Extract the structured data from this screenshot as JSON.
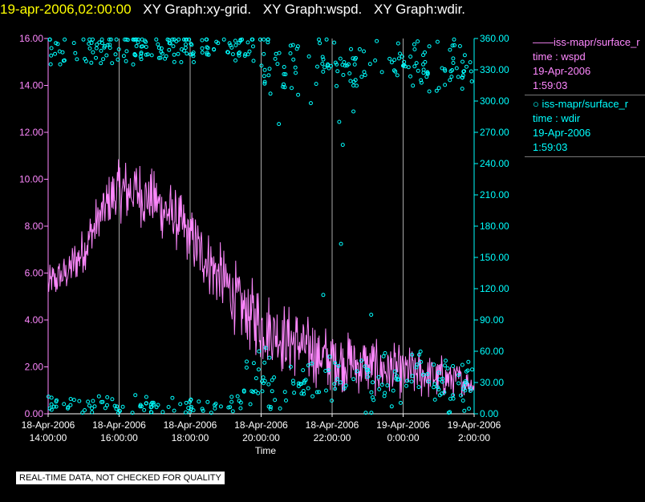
{
  "title": {
    "time": "19-apr-2006,02:00:00",
    "graphs": [
      "XY Graph:xy-grid.",
      "XY Graph:wspd.",
      "XY Graph:wdir."
    ]
  },
  "legend": [
    {
      "symbol": "line",
      "series": "iss-mapr/surface_r",
      "label": "time : wspd",
      "date": "19-Apr-2006",
      "time": "1:59:03",
      "color": "#ff88ff"
    },
    {
      "symbol": "circle",
      "series": "iss-mapr/surface_r",
      "label": "time : wdir",
      "date": "19-Apr-2006",
      "time": "1:59:03",
      "color": "#00ffff"
    }
  ],
  "disclaimer": "REAL-TIME DATA, NOT CHECKED FOR QUALITY",
  "colors": {
    "left_axis": "#ff88ff",
    "right_axis": "#00ffff",
    "grid": "#aaaaaa",
    "text": "#ffffff"
  },
  "chart_data": {
    "type": "line+scatter",
    "xlabel": "Time",
    "xlim": [
      14.0,
      26.0
    ],
    "x_ticks": [
      {
        "value": 14,
        "line1": "18-Apr-2006",
        "line2": "14:00:00"
      },
      {
        "value": 16,
        "line1": "18-Apr-2006",
        "line2": "16:00:00"
      },
      {
        "value": 18,
        "line1": "18-Apr-2006",
        "line2": "18:00:00"
      },
      {
        "value": 20,
        "line1": "18-Apr-2006",
        "line2": "20:00:00"
      },
      {
        "value": 22,
        "line1": "18-Apr-2006",
        "line2": "22:00:00"
      },
      {
        "value": 24,
        "line1": "19-Apr-2006",
        "line2": "0:00:00"
      },
      {
        "value": 26,
        "line1": "19-Apr-2006",
        "line2": "2:00:00"
      }
    ],
    "y_left": {
      "name": "wspd",
      "lim": [
        0,
        16
      ],
      "ticks": [
        "0.00",
        "2.00",
        "4.00",
        "6.00",
        "8.00",
        "10.00",
        "12.00",
        "14.00",
        "16.00"
      ]
    },
    "y_right": {
      "name": "wdir",
      "lim": [
        0,
        360
      ],
      "ticks": [
        "0.00",
        "30.00",
        "60.00",
        "90.00",
        "120.00",
        "150.00",
        "180.00",
        "210.00",
        "240.00",
        "270.00",
        "300.00",
        "330.00",
        "360.00"
      ]
    },
    "series": [
      {
        "name": "wspd",
        "axis": "left",
        "style": "line",
        "x": [
          14.0,
          14.5,
          15.0,
          15.5,
          16.0,
          16.5,
          17.0,
          17.5,
          18.0,
          18.5,
          19.0,
          19.5,
          20.0,
          20.5,
          21.0,
          21.5,
          22.0,
          22.5,
          23.0,
          23.5,
          24.0,
          24.5,
          25.0,
          25.5,
          26.0
        ],
        "values": [
          5.5,
          6.0,
          7.0,
          8.5,
          9.5,
          9.5,
          9.0,
          8.5,
          7.5,
          6.5,
          5.5,
          4.5,
          3.8,
          3.3,
          3.0,
          2.6,
          2.3,
          2.2,
          2.0,
          1.9,
          1.8,
          1.7,
          1.6,
          1.5,
          1.2
        ],
        "amplitude": [
          0.8,
          0.9,
          1.0,
          1.3,
          1.4,
          1.5,
          1.4,
          1.4,
          1.3,
          1.4,
          1.6,
          1.7,
          1.7,
          1.6,
          1.5,
          1.5,
          1.4,
          1.3,
          1.3,
          1.2,
          1.2,
          1.1,
          1.0,
          0.8,
          0.4
        ]
      },
      {
        "name": "wdir",
        "axis": "right",
        "style": "scatter",
        "clusters": [
          {
            "x_range": [
              14.0,
              20.0
            ],
            "center": 352,
            "spread": 14,
            "count": 160
          },
          {
            "x_range": [
              20.0,
              26.0
            ],
            "center": 335,
            "spread": 22,
            "count": 150
          },
          {
            "x_range": [
              14.0,
              19.5
            ],
            "center": 8,
            "spread": 8,
            "count": 90
          },
          {
            "x_range": [
              19.5,
              26.0
            ],
            "center": 30,
            "spread": 26,
            "count": 150
          }
        ],
        "outliers": [
          {
            "x": 20.5,
            "y": 278
          },
          {
            "x": 21.4,
            "y": 298
          },
          {
            "x": 22.2,
            "y": 280
          },
          {
            "x": 22.3,
            "y": 258
          },
          {
            "x": 22.25,
            "y": 163
          },
          {
            "x": 21.75,
            "y": 114
          },
          {
            "x": 22.6,
            "y": 290
          },
          {
            "x": 23.1,
            "y": 95
          },
          {
            "x": 24.5,
            "y": 320
          }
        ]
      }
    ]
  }
}
